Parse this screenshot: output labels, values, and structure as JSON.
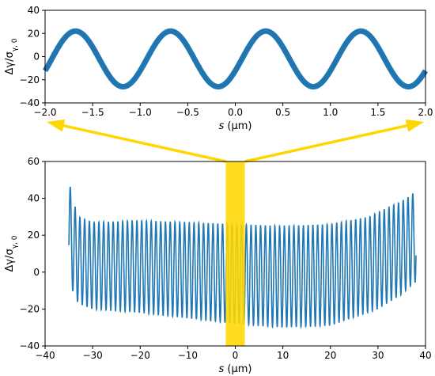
{
  "chart_data": [
    {
      "type": "line",
      "panel": "top",
      "title": "",
      "xlabel_var": "s",
      "xlabel_unit": " (μm)",
      "ylabel_main": "Δγ/σ",
      "ylabel_sub": "γ, 0",
      "xlim": [
        -2.0,
        2.0
      ],
      "ylim": [
        -40,
        40
      ],
      "xticks": [
        -2.0,
        -1.5,
        -1.0,
        -0.5,
        0.0,
        0.5,
        1.0,
        1.5,
        2.0
      ],
      "xtick_labels": [
        "−2.0",
        "−1.5",
        "−1.0",
        "−0.5",
        "0.0",
        "0.5",
        "1.0",
        "1.5",
        "2.0"
      ],
      "yticks": [
        -40,
        -20,
        0,
        20,
        40
      ],
      "ytick_labels": [
        "−40",
        "−20",
        "0",
        "20",
        "40"
      ],
      "series": [
        {
          "color": "#1f77b4",
          "description_values": {
            "form": "sinusoid",
            "period_um": 1.0,
            "amplitude": 24,
            "center": -2,
            "peaks_x": [
              -1.68,
              -0.68,
              0.32,
              1.32
            ],
            "troughs_x": [
              -1.18,
              -0.18,
              0.82,
              1.82
            ],
            "band_half_width": 2
          }
        }
      ]
    },
    {
      "type": "line",
      "panel": "bottom",
      "title": "",
      "xlabel_var": "s",
      "xlabel_unit": " (μm)",
      "ylabel_main": "Δγ/σ",
      "ylabel_sub": "γ, 0",
      "xlim": [
        -40,
        40
      ],
      "ylim": [
        -40,
        60
      ],
      "xticks": [
        -40,
        -30,
        -20,
        -10,
        0,
        10,
        20,
        30,
        40
      ],
      "xtick_labels": [
        "−40",
        "−30",
        "−20",
        "−10",
        "0",
        "10",
        "20",
        "30",
        "40"
      ],
      "yticks": [
        -40,
        -20,
        0,
        20,
        40,
        60
      ],
      "ytick_labels": [
        "−40",
        "−20",
        "0",
        "20",
        "40",
        "60"
      ],
      "highlight_band_x": [
        -2.0,
        2.0
      ],
      "highlight_color": "#ffd700",
      "series": [
        {
          "color": "#1f77b4",
          "x_range": [
            -35,
            38
          ],
          "period_um": 1.0,
          "upper_envelope": [
            [
              -35,
              56
            ],
            [
              -34.5,
              40
            ],
            [
              -34,
              38
            ],
            [
              -33,
              30
            ],
            [
              -30,
              27
            ],
            [
              -20,
              28
            ],
            [
              -10,
              27
            ],
            [
              0,
              26
            ],
            [
              10,
              25
            ],
            [
              20,
              26
            ],
            [
              28,
              30
            ],
            [
              33,
              36
            ],
            [
              36,
              40
            ],
            [
              38,
              44
            ]
          ],
          "lower_envelope": [
            [
              -35,
              -2
            ],
            [
              -34,
              -12
            ],
            [
              -33,
              -17
            ],
            [
              -30,
              -20
            ],
            [
              -20,
              -22
            ],
            [
              -10,
              -25
            ],
            [
              0,
              -28
            ],
            [
              10,
              -30
            ],
            [
              20,
              -29
            ],
            [
              30,
              -20
            ],
            [
              35,
              -12
            ],
            [
              38,
              -5
            ]
          ]
        }
      ]
    }
  ]
}
